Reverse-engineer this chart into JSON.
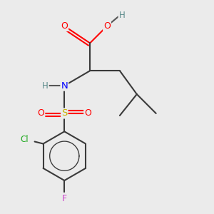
{
  "bg_color": "#ebebeb",
  "bond_color": "#3a3a3a",
  "bond_width": 1.5,
  "fig_size": [
    3.0,
    3.0
  ],
  "dpi": 100,
  "xlim": [
    0,
    1
  ],
  "ylim": [
    0,
    1
  ]
}
